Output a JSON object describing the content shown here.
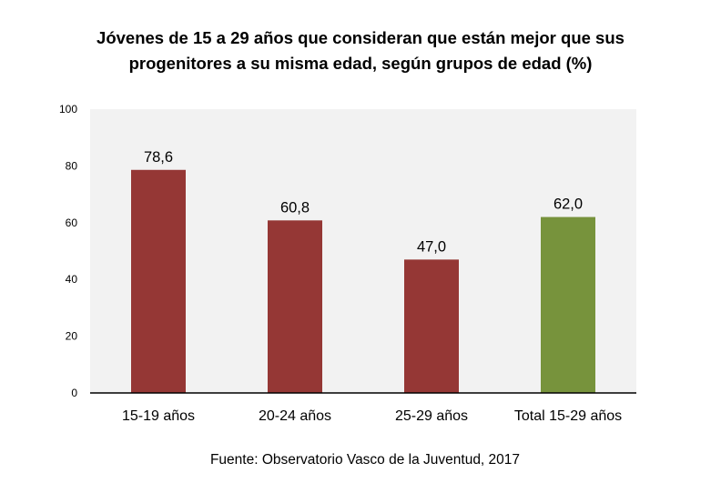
{
  "chart_data": {
    "type": "bar",
    "title": [
      "Jóvenes de 15 a 29 años que consideran que están mejor que sus",
      "progenitores a su misma edad, según grupos de edad (%)"
    ],
    "categories": [
      "15-19 años",
      "20-24 años",
      "25-29 años",
      "Total 15-29 años"
    ],
    "values": [
      78.6,
      60.8,
      47.0,
      62.0
    ],
    "value_labels": [
      "78,6",
      "60,8",
      "47,0",
      "62,0"
    ],
    "colors": [
      "#953735",
      "#953735",
      "#953735",
      "#77933C"
    ],
    "yticks": [
      0,
      20,
      40,
      60,
      80,
      100
    ],
    "ylim": [
      0,
      100
    ],
    "xlabel": "",
    "ylabel": "",
    "grid": false,
    "plot_background": "#F2F2F2",
    "source": "Fuente: Observatorio Vasco de la Juventud, 2017"
  }
}
